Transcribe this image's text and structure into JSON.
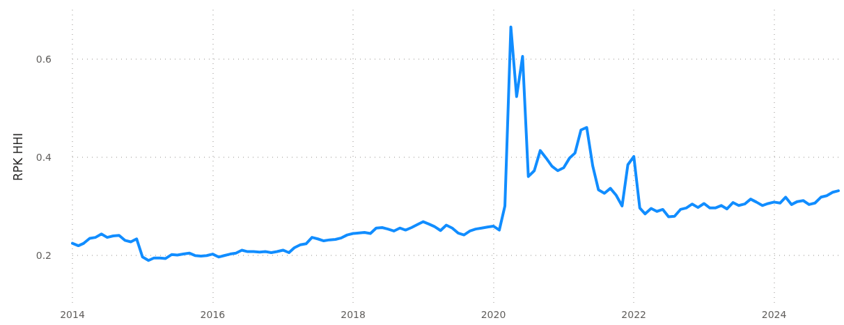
{
  "chart_data": {
    "type": "line",
    "ylabel": "RPK HHI",
    "x": [
      "2014-01",
      "2014-02",
      "2014-03",
      "2014-04",
      "2014-05",
      "2014-06",
      "2014-07",
      "2014-08",
      "2014-09",
      "2014-10",
      "2014-11",
      "2014-12",
      "2015-01",
      "2015-02",
      "2015-03",
      "2015-04",
      "2015-05",
      "2015-06",
      "2015-07",
      "2015-08",
      "2015-09",
      "2015-10",
      "2015-11",
      "2015-12",
      "2016-01",
      "2016-02",
      "2016-03",
      "2016-04",
      "2016-05",
      "2016-06",
      "2016-07",
      "2016-08",
      "2016-09",
      "2016-10",
      "2016-11",
      "2016-12",
      "2017-01",
      "2017-02",
      "2017-03",
      "2017-04",
      "2017-05",
      "2017-06",
      "2017-07",
      "2017-08",
      "2017-09",
      "2017-10",
      "2017-11",
      "2017-12",
      "2018-01",
      "2018-02",
      "2018-03",
      "2018-04",
      "2018-05",
      "2018-06",
      "2018-07",
      "2018-08",
      "2018-09",
      "2018-10",
      "2018-11",
      "2018-12",
      "2019-01",
      "2019-02",
      "2019-03",
      "2019-04",
      "2019-05",
      "2019-06",
      "2019-07",
      "2019-08",
      "2019-09",
      "2019-10",
      "2019-11",
      "2019-12",
      "2020-01",
      "2020-02",
      "2020-03",
      "2020-04",
      "2020-05",
      "2020-06",
      "2020-07",
      "2020-08",
      "2020-09",
      "2020-10",
      "2020-11",
      "2020-12",
      "2021-01",
      "2021-02",
      "2021-03",
      "2021-04",
      "2021-05",
      "2021-06",
      "2021-07",
      "2021-08",
      "2021-09",
      "2021-10",
      "2021-11",
      "2021-12",
      "2022-01",
      "2022-02",
      "2022-03",
      "2022-04",
      "2022-05",
      "2022-06",
      "2022-07",
      "2022-08",
      "2022-09",
      "2022-10",
      "2022-11",
      "2022-12",
      "2023-01",
      "2023-02",
      "2023-03",
      "2023-04",
      "2023-05",
      "2023-06",
      "2023-07",
      "2023-08",
      "2023-09",
      "2023-10",
      "2023-11",
      "2023-12",
      "2024-01",
      "2024-02",
      "2024-03",
      "2024-04",
      "2024-05",
      "2024-06",
      "2024-07",
      "2024-08",
      "2024-09",
      "2024-10",
      "2024-11",
      "2024-12"
    ],
    "series": [
      {
        "color": "#118dff",
        "values": [
          0.224,
          0.219,
          0.224,
          0.234,
          0.236,
          0.243,
          0.236,
          0.239,
          0.24,
          0.23,
          0.227,
          0.233,
          0.196,
          0.189,
          0.194,
          0.194,
          0.193,
          0.201,
          0.2,
          0.202,
          0.204,
          0.199,
          0.198,
          0.199,
          0.202,
          0.196,
          0.199,
          0.202,
          0.204,
          0.21,
          0.207,
          0.207,
          0.206,
          0.207,
          0.205,
          0.207,
          0.21,
          0.205,
          0.215,
          0.221,
          0.223,
          0.236,
          0.233,
          0.229,
          0.231,
          0.232,
          0.235,
          0.241,
          0.244,
          0.245,
          0.246,
          0.244,
          0.255,
          0.256,
          0.253,
          0.249,
          0.255,
          0.251,
          0.256,
          0.262,
          0.268,
          0.263,
          0.258,
          0.25,
          0.261,
          0.255,
          0.245,
          0.241,
          0.249,
          0.253,
          0.255,
          0.257,
          0.259,
          0.251,
          0.3,
          0.665,
          0.523,
          0.605,
          0.36,
          0.372,
          0.413,
          0.398,
          0.381,
          0.372,
          0.378,
          0.398,
          0.408,
          0.455,
          0.46,
          0.382,
          0.333,
          0.326,
          0.336,
          0.322,
          0.3,
          0.384,
          0.401,
          0.296,
          0.284,
          0.295,
          0.289,
          0.293,
          0.278,
          0.279,
          0.293,
          0.296,
          0.304,
          0.297,
          0.305,
          0.296,
          0.296,
          0.301,
          0.294,
          0.307,
          0.301,
          0.304,
          0.314,
          0.308,
          0.301,
          0.305,
          0.308,
          0.306,
          0.318,
          0.303,
          0.309,
          0.311,
          0.303,
          0.306,
          0.318,
          0.321,
          0.328,
          0.331
        ]
      }
    ],
    "xlim": [
      "2014-01",
      "2024-12"
    ],
    "xticks": [
      "2014",
      "2016",
      "2018",
      "2020",
      "2022",
      "2024"
    ],
    "ylim": [
      0.1,
      0.7
    ],
    "yticks": [
      0.2,
      0.4,
      0.6
    ],
    "grid": true,
    "marker": "none",
    "line_style": "solid"
  }
}
